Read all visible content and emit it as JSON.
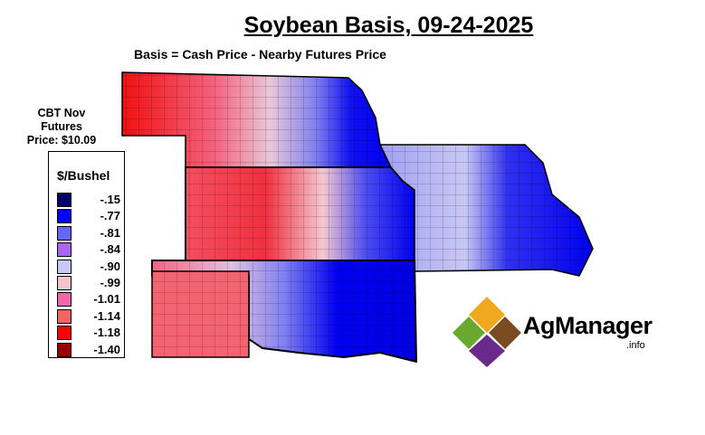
{
  "title": "Soybean Basis, 09-24-2025",
  "subtitle": "Basis = Cash Price - Nearby Futures Price",
  "futures": {
    "line1": "CBT Nov",
    "line2": "Futures",
    "line3": "Price: $10.09"
  },
  "legend": {
    "title": "$/Bushel",
    "items": [
      {
        "label": "-.15",
        "color": "#000066"
      },
      {
        "label": "-.77",
        "color": "#0000ff"
      },
      {
        "label": "-.81",
        "color": "#6666ff"
      },
      {
        "label": "-.84",
        "color": "#aa66f0"
      },
      {
        "label": "-.90",
        "color": "#c8c8f4"
      },
      {
        "label": "-.99",
        "color": "#f4c4c8"
      },
      {
        "label": "-1.01",
        "color": "#f466aa"
      },
      {
        "label": "-1.14",
        "color": "#f46464"
      },
      {
        "label": "-1.18",
        "color": "#ff0000"
      },
      {
        "label": "-1.40",
        "color": "#990000"
      }
    ]
  },
  "logo": {
    "brand": "AgManager",
    "suffix": ".info"
  }
}
